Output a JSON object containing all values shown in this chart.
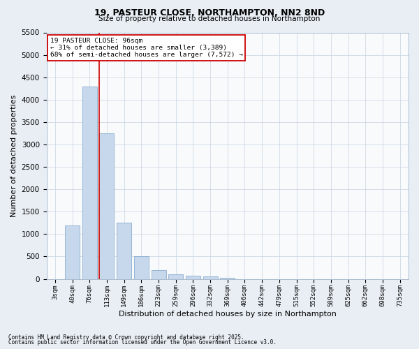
{
  "title1": "19, PASTEUR CLOSE, NORTHAMPTON, NN2 8ND",
  "title2": "Size of property relative to detached houses in Northampton",
  "xlabel": "Distribution of detached houses by size in Northampton",
  "ylabel": "Number of detached properties",
  "bins": [
    "3sqm",
    "40sqm",
    "76sqm",
    "113sqm",
    "149sqm",
    "186sqm",
    "223sqm",
    "259sqm",
    "296sqm",
    "332sqm",
    "369sqm",
    "406sqm",
    "442sqm",
    "479sqm",
    "515sqm",
    "552sqm",
    "589sqm",
    "625sqm",
    "662sqm",
    "698sqm",
    "735sqm"
  ],
  "values": [
    0,
    1200,
    4300,
    3250,
    1250,
    500,
    200,
    100,
    75,
    50,
    30,
    0,
    0,
    0,
    0,
    0,
    0,
    0,
    0,
    0,
    0
  ],
  "bar_color": "#c8d8ec",
  "bar_edge_color": "#8aaed0",
  "vline_color": "#cc0000",
  "annotation_text": "19 PASTEUR CLOSE: 96sqm\n← 31% of detached houses are smaller (3,389)\n68% of semi-detached houses are larger (7,572) →",
  "annotation_box_color": "#ffffff",
  "annotation_border_color": "#cc0000",
  "ylim": [
    0,
    5500
  ],
  "yticks": [
    0,
    500,
    1000,
    1500,
    2000,
    2500,
    3000,
    3500,
    4000,
    4500,
    5000,
    5500
  ],
  "footnote1": "Contains HM Land Registry data © Crown copyright and database right 2025.",
  "footnote2": "Contains public sector information licensed under the Open Government Licence v3.0.",
  "bg_color": "#e8eef4",
  "plot_bg_color": "#f8fafc",
  "grid_color": "#c8d4e0"
}
